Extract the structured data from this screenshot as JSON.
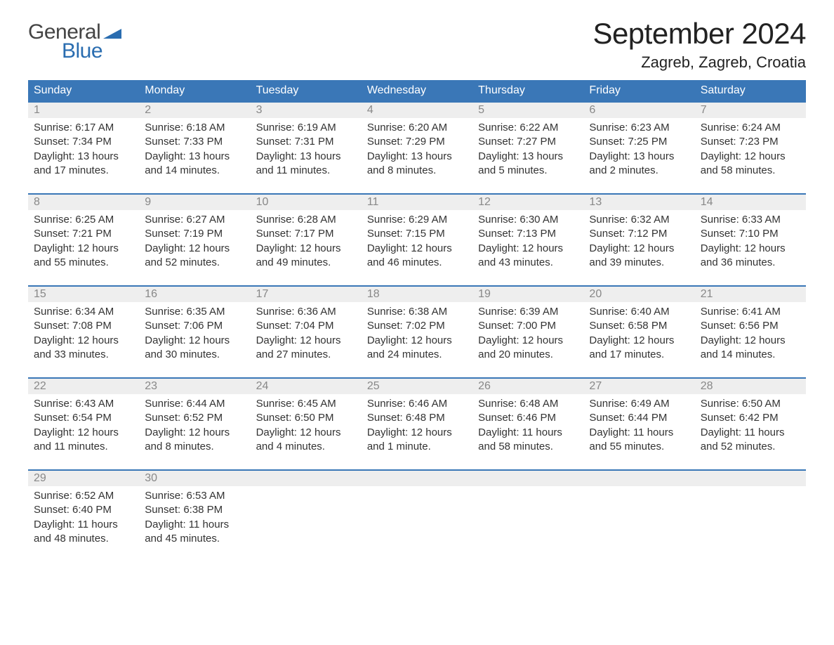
{
  "logo": {
    "word1": "General",
    "word2": "Blue"
  },
  "title": "September 2024",
  "location": "Zagreb, Zagreb, Croatia",
  "colors": {
    "header_bg": "#3a77b7",
    "header_text": "#ffffff",
    "daynum_bg": "#eeeeee",
    "daynum_text": "#888888",
    "accent": "#2a6db0",
    "body_text": "#333333",
    "background": "#ffffff"
  },
  "day_headers": [
    "Sunday",
    "Monday",
    "Tuesday",
    "Wednesday",
    "Thursday",
    "Friday",
    "Saturday"
  ],
  "days": [
    {
      "n": 1,
      "sunrise": "6:17 AM",
      "sunset": "7:34 PM",
      "daylight": "13 hours and 17 minutes."
    },
    {
      "n": 2,
      "sunrise": "6:18 AM",
      "sunset": "7:33 PM",
      "daylight": "13 hours and 14 minutes."
    },
    {
      "n": 3,
      "sunrise": "6:19 AM",
      "sunset": "7:31 PM",
      "daylight": "13 hours and 11 minutes."
    },
    {
      "n": 4,
      "sunrise": "6:20 AM",
      "sunset": "7:29 PM",
      "daylight": "13 hours and 8 minutes."
    },
    {
      "n": 5,
      "sunrise": "6:22 AM",
      "sunset": "7:27 PM",
      "daylight": "13 hours and 5 minutes."
    },
    {
      "n": 6,
      "sunrise": "6:23 AM",
      "sunset": "7:25 PM",
      "daylight": "13 hours and 2 minutes."
    },
    {
      "n": 7,
      "sunrise": "6:24 AM",
      "sunset": "7:23 PM",
      "daylight": "12 hours and 58 minutes."
    },
    {
      "n": 8,
      "sunrise": "6:25 AM",
      "sunset": "7:21 PM",
      "daylight": "12 hours and 55 minutes."
    },
    {
      "n": 9,
      "sunrise": "6:27 AM",
      "sunset": "7:19 PM",
      "daylight": "12 hours and 52 minutes."
    },
    {
      "n": 10,
      "sunrise": "6:28 AM",
      "sunset": "7:17 PM",
      "daylight": "12 hours and 49 minutes."
    },
    {
      "n": 11,
      "sunrise": "6:29 AM",
      "sunset": "7:15 PM",
      "daylight": "12 hours and 46 minutes."
    },
    {
      "n": 12,
      "sunrise": "6:30 AM",
      "sunset": "7:13 PM",
      "daylight": "12 hours and 43 minutes."
    },
    {
      "n": 13,
      "sunrise": "6:32 AM",
      "sunset": "7:12 PM",
      "daylight": "12 hours and 39 minutes."
    },
    {
      "n": 14,
      "sunrise": "6:33 AM",
      "sunset": "7:10 PM",
      "daylight": "12 hours and 36 minutes."
    },
    {
      "n": 15,
      "sunrise": "6:34 AM",
      "sunset": "7:08 PM",
      "daylight": "12 hours and 33 minutes."
    },
    {
      "n": 16,
      "sunrise": "6:35 AM",
      "sunset": "7:06 PM",
      "daylight": "12 hours and 30 minutes."
    },
    {
      "n": 17,
      "sunrise": "6:36 AM",
      "sunset": "7:04 PM",
      "daylight": "12 hours and 27 minutes."
    },
    {
      "n": 18,
      "sunrise": "6:38 AM",
      "sunset": "7:02 PM",
      "daylight": "12 hours and 24 minutes."
    },
    {
      "n": 19,
      "sunrise": "6:39 AM",
      "sunset": "7:00 PM",
      "daylight": "12 hours and 20 minutes."
    },
    {
      "n": 20,
      "sunrise": "6:40 AM",
      "sunset": "6:58 PM",
      "daylight": "12 hours and 17 minutes."
    },
    {
      "n": 21,
      "sunrise": "6:41 AM",
      "sunset": "6:56 PM",
      "daylight": "12 hours and 14 minutes."
    },
    {
      "n": 22,
      "sunrise": "6:43 AM",
      "sunset": "6:54 PM",
      "daylight": "12 hours and 11 minutes."
    },
    {
      "n": 23,
      "sunrise": "6:44 AM",
      "sunset": "6:52 PM",
      "daylight": "12 hours and 8 minutes."
    },
    {
      "n": 24,
      "sunrise": "6:45 AM",
      "sunset": "6:50 PM",
      "daylight": "12 hours and 4 minutes."
    },
    {
      "n": 25,
      "sunrise": "6:46 AM",
      "sunset": "6:48 PM",
      "daylight": "12 hours and 1 minute."
    },
    {
      "n": 26,
      "sunrise": "6:48 AM",
      "sunset": "6:46 PM",
      "daylight": "11 hours and 58 minutes."
    },
    {
      "n": 27,
      "sunrise": "6:49 AM",
      "sunset": "6:44 PM",
      "daylight": "11 hours and 55 minutes."
    },
    {
      "n": 28,
      "sunrise": "6:50 AM",
      "sunset": "6:42 PM",
      "daylight": "11 hours and 52 minutes."
    },
    {
      "n": 29,
      "sunrise": "6:52 AM",
      "sunset": "6:40 PM",
      "daylight": "11 hours and 48 minutes."
    },
    {
      "n": 30,
      "sunrise": "6:53 AM",
      "sunset": "6:38 PM",
      "daylight": "11 hours and 45 minutes."
    }
  ],
  "labels": {
    "sunrise": "Sunrise:",
    "sunset": "Sunset:",
    "daylight": "Daylight:"
  },
  "layout": {
    "first_day_column": 0,
    "total_cells": 35,
    "columns": 7
  }
}
